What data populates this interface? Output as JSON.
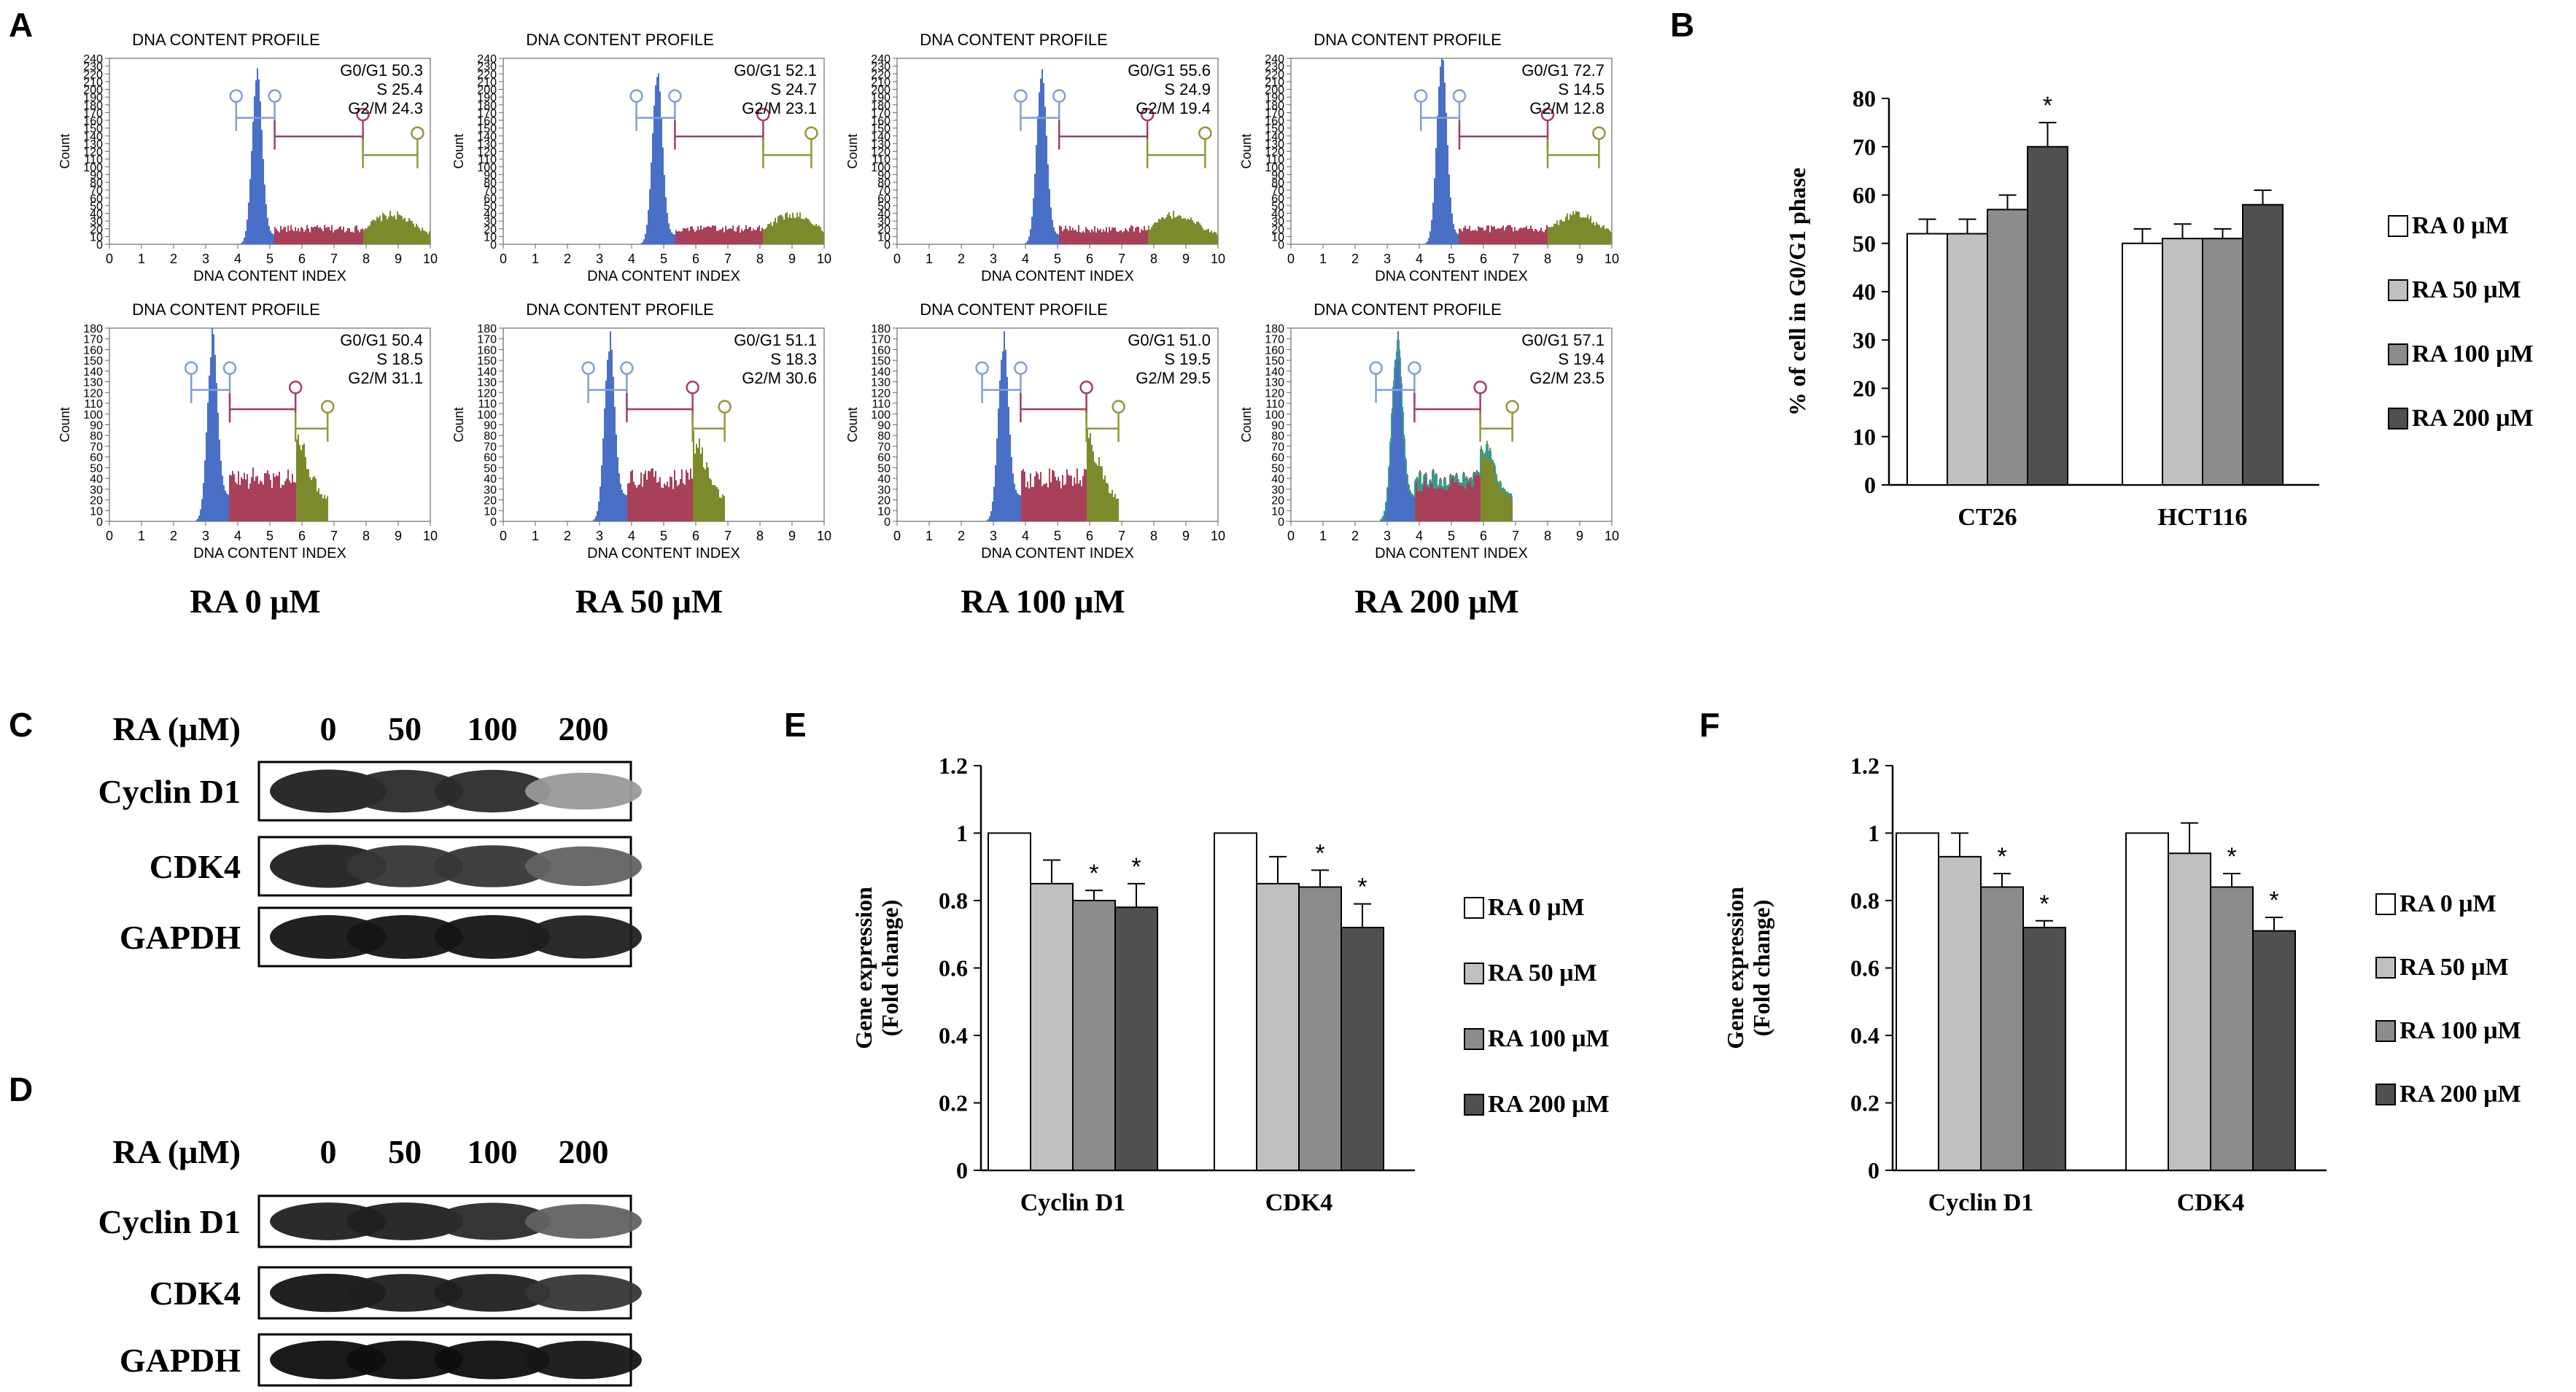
{
  "panel_letters": {
    "A": "A",
    "B": "B",
    "C": "C",
    "D": "D",
    "E": "E",
    "F": "F"
  },
  "colors": {
    "g1": "#4a6fc7",
    "s": "#a8405a",
    "g2m": "#7d8a2c",
    "white": "#ffffff",
    "light": "#c0c0c0",
    "mid": "#8c8c8c",
    "dark": "#505050"
  },
  "chart_data": [
    {
      "id": "A",
      "type": "histogram",
      "title": "DNA CONTENT PROFILE",
      "xlabel": "DNA CONTENT INDEX",
      "ylabel": "Count",
      "x_ticks": [
        "0",
        "1",
        "2",
        "3",
        "4",
        "5",
        "6",
        "7",
        "8",
        "9",
        "10"
      ],
      "y_ticks_top": [
        "0",
        "10",
        "20",
        "30",
        "40",
        "50",
        "60",
        "70",
        "80",
        "90",
        "100",
        "110",
        "120",
        "130",
        "140",
        "150",
        "160",
        "170",
        "180",
        "190",
        "200",
        "210",
        "220",
        "230",
        "240"
      ],
      "y_ticks_bottom": [
        "0",
        "10",
        "20",
        "30",
        "40",
        "50",
        "60",
        "70",
        "80",
        "90",
        "100",
        "110",
        "120",
        "130",
        "140",
        "150",
        "160",
        "170",
        "180"
      ],
      "columns": [
        "RA 0 μM",
        "RA 50 μM",
        "RA 100 μM",
        "RA 200 μM"
      ],
      "top_row": [
        {
          "G0G1": "G0/G1 50.3",
          "S": "S 25.4",
          "G2M": "G2/M 24.3",
          "peak": 4.6
        },
        {
          "G0G1": "G0/G1 52.1",
          "S": "S 24.7",
          "G2M": "G2/M 23.1",
          "peak": 4.8
        },
        {
          "G0G1": "G0/G1 55.6",
          "S": "S 24.9",
          "G2M": "G2/M 19.4",
          "peak": 4.5
        },
        {
          "G0G1": "G0/G1 72.7",
          "S": "S 14.5",
          "G2M": "G2/M 12.8",
          "peak": 4.7
        }
      ],
      "bottom_row": [
        {
          "G0G1": "G0/G1 50.4",
          "S": "S 18.5",
          "G2M": "G2/M 31.1",
          "peak": 3.2
        },
        {
          "G0G1": "G0/G1 51.1",
          "S": "S 18.3",
          "G2M": "G2/M 30.6",
          "peak": 3.3
        },
        {
          "G0G1": "G0/G1 51.0",
          "S": "S 19.5",
          "G2M": "G2/M 29.5",
          "peak": 3.3
        },
        {
          "G0G1": "G0/G1 57.1",
          "S": "S 19.4",
          "G2M": "G2/M 23.5",
          "peak": 3.3
        }
      ]
    },
    {
      "id": "B",
      "type": "bar",
      "ylabel": "% of cell in G0/G1 phase",
      "ylim": [
        0,
        80
      ],
      "y_ticks": [
        "0",
        "10",
        "20",
        "30",
        "40",
        "50",
        "60",
        "70",
        "80"
      ],
      "categories": [
        "CT26",
        "HCT116"
      ],
      "series": [
        {
          "name": "RA  0 μM",
          "values": [
            52,
            50
          ],
          "errors": [
            3,
            3
          ]
        },
        {
          "name": "RA  50 μM",
          "values": [
            52,
            51
          ],
          "errors": [
            3,
            3
          ]
        },
        {
          "name": "RA  100 μM",
          "values": [
            57,
            51
          ],
          "errors": [
            3,
            2
          ]
        },
        {
          "name": "RA  200 μM",
          "values": [
            70,
            58
          ],
          "errors": [
            5,
            3
          ]
        }
      ],
      "significance": [
        [
          0,
          0,
          0,
          1
        ],
        [
          0,
          0,
          0,
          0
        ]
      ],
      "star": "*"
    },
    {
      "id": "E",
      "type": "bar",
      "ylabel": "Gene expression (Fold change)",
      "ylim": [
        0,
        1.2
      ],
      "y_ticks": [
        "0",
        "0.2",
        "0.4",
        "0.6",
        "0.8",
        "1",
        "1.2"
      ],
      "categories": [
        "Cyclin D1",
        "CDK4"
      ],
      "series": [
        {
          "name": "RA  0 μM",
          "values": [
            1.0,
            1.0
          ],
          "errors": [
            0,
            0
          ]
        },
        {
          "name": "RA  50 μM",
          "values": [
            0.85,
            0.85
          ],
          "errors": [
            0.07,
            0.08
          ]
        },
        {
          "name": "RA  100 μM",
          "values": [
            0.8,
            0.84
          ],
          "errors": [
            0.03,
            0.05
          ]
        },
        {
          "name": "RA  200 μM",
          "values": [
            0.78,
            0.72
          ],
          "errors": [
            0.07,
            0.07
          ]
        }
      ],
      "significance": [
        [
          0,
          0,
          1,
          1
        ],
        [
          0,
          0,
          1,
          1
        ]
      ],
      "star": "*"
    },
    {
      "id": "F",
      "type": "bar",
      "ylabel": "Gene expression (Fold change)",
      "ylim": [
        0,
        1.2
      ],
      "y_ticks": [
        "0",
        "0.2",
        "0.4",
        "0.6",
        "0.8",
        "1",
        "1.2"
      ],
      "categories": [
        "Cyclin D1",
        "CDK4"
      ],
      "series": [
        {
          "name": "RA  0 μM",
          "values": [
            1.0,
            1.0
          ],
          "errors": [
            0,
            0
          ]
        },
        {
          "name": "RA  50 μM",
          "values": [
            0.93,
            0.94
          ],
          "errors": [
            0.07,
            0.09
          ]
        },
        {
          "name": "RA  100 μM",
          "values": [
            0.84,
            0.84
          ],
          "errors": [
            0.04,
            0.04
          ]
        },
        {
          "name": "RA  200 μM",
          "values": [
            0.72,
            0.71
          ],
          "errors": [
            0.02,
            0.04
          ]
        }
      ],
      "significance": [
        [
          0,
          0,
          1,
          1
        ],
        [
          0,
          0,
          1,
          1
        ]
      ],
      "star": "*"
    }
  ],
  "blots": [
    {
      "id": "C",
      "header_label": "RA (μM)",
      "doses": [
        "0",
        "50",
        "100",
        "200"
      ],
      "rows": [
        {
          "label": "Cyclin D1",
          "intensity": [
            0.9,
            0.85,
            0.85,
            0.35
          ]
        },
        {
          "label": "CDK4",
          "intensity": [
            0.9,
            0.8,
            0.8,
            0.6
          ]
        },
        {
          "label": "GAPDH",
          "intensity": [
            0.95,
            0.95,
            0.95,
            0.9
          ]
        }
      ]
    },
    {
      "id": "D",
      "header_label": "RA (μM)",
      "doses": [
        "0",
        "50",
        "100",
        "200"
      ],
      "rows": [
        {
          "label": "Cyclin D1",
          "intensity": [
            0.9,
            0.9,
            0.85,
            0.6
          ]
        },
        {
          "label": "CDK4",
          "intensity": [
            0.95,
            0.9,
            0.9,
            0.8
          ]
        },
        {
          "label": "GAPDH",
          "intensity": [
            0.98,
            0.98,
            0.98,
            0.95
          ]
        }
      ]
    }
  ]
}
